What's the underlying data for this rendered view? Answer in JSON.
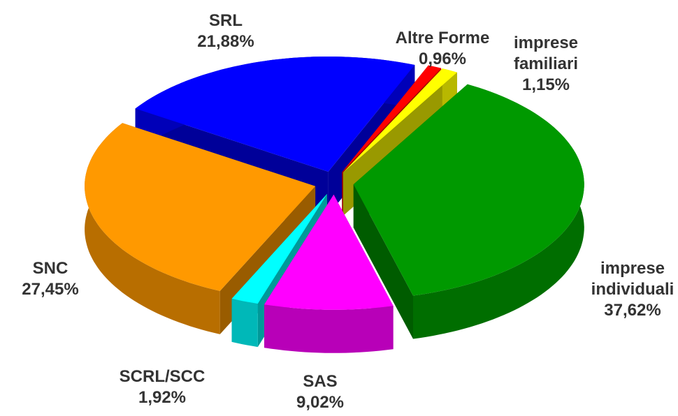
{
  "chart_data": {
    "type": "pie",
    "categories": [
      "Altre Forme",
      "imprese familiari",
      "imprese individuali",
      "SAS",
      "SCRL/SCC",
      "SNC",
      "SRL"
    ],
    "values": [
      0.96,
      1.15,
      37.62,
      9.02,
      1.92,
      27.45,
      21.88
    ],
    "value_labels": [
      "0,96%",
      "1,15%",
      "37,62%",
      "9,02%",
      "1,92%",
      "27,45%",
      "21,88%"
    ],
    "colors": [
      "#ff0000",
      "#ffff00",
      "#009900",
      "#ff00ff",
      "#00ffff",
      "#ff9900",
      "#0000ff"
    ]
  }
}
